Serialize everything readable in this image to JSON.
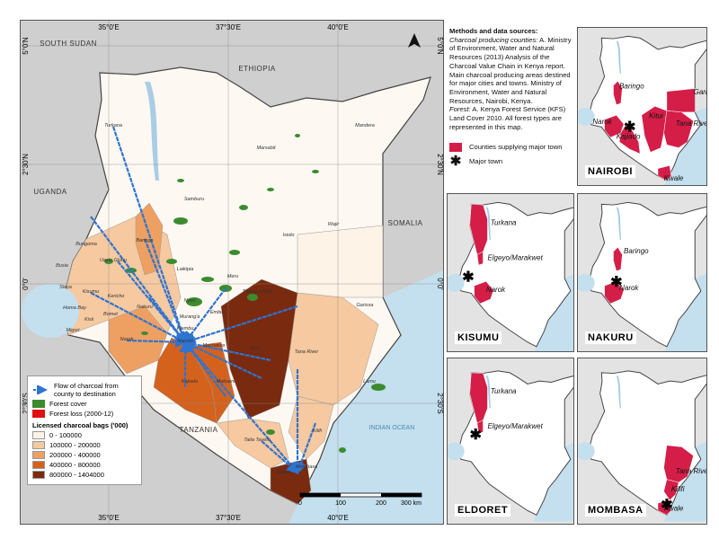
{
  "map": {
    "graticule": {
      "top": [
        "35°0'E",
        "37°30'E",
        "40°0'E"
      ],
      "bottom": [
        "35°0'E",
        "37°30'E",
        "40°0'E"
      ],
      "left": [
        "5°0'N",
        "2°30'N",
        "0°0'",
        "2°30'S"
      ],
      "right": [
        "5°0'N",
        "2°30'N",
        "0°0'",
        "2°30'S"
      ]
    },
    "countries": [
      "SOUTH SUDAN",
      "ETHIOPIA",
      "UGANDA",
      "SOMALIA",
      "TANZANIA"
    ],
    "ocean": "INDIAN OCEAN",
    "counties": [
      "Turkana",
      "Marsabit",
      "Mandera",
      "Wajir",
      "Samburu",
      "Isiolo",
      "Garissa",
      "Meru",
      "Laikipia",
      "Baringo",
      "Bungoma",
      "Uasin Gishu",
      "Busia",
      "Siaya",
      "Kisumu",
      "Kericho",
      "Homa Bay",
      "Kisii",
      "Migori",
      "Bomet",
      "Nakuru",
      "Narok",
      "Nyeri",
      "Tharaka Nithi",
      "Embu",
      "Murang'a",
      "Kiambu",
      "Nairobi",
      "Machakos",
      "Kitui",
      "Kajiado",
      "Makueni",
      "Tana River",
      "Lamu",
      "Kilifi",
      "Taita Taveta",
      "Kwale",
      "Mombasa"
    ],
    "scale_bar": [
      "0",
      "100",
      "200",
      "300 km"
    ]
  },
  "legend": {
    "flow": "Flow of charcoal from county to destination",
    "forest_cover": "Forest cover",
    "forest_loss": "Forest loss (2000-12)",
    "bags_title": "Licensed charcoal bags ('000)",
    "classes": [
      "0 - 100000",
      "100000 - 200000",
      "200000 - 400000",
      "400000 - 800000",
      "800000 - 1404000"
    ]
  },
  "methods": {
    "title": "Methods and data sources:",
    "counties_label": "Charcoal producing counties:",
    "counties_text": "A. Ministry of Environment, Water and Natural Resources (2013) Analysis of the Charcoal Value Chain in Kenya report. Main charcoal producing areas destined for major cities and towns. Ministry of Environment, Water and Natural Resources, Nairobi, Kenya.",
    "forest_label": "Forest:",
    "forest_text": "A. Kenya Forest Service (KFS) Land Cover 2010. All forest types are represented in this map."
  },
  "inset_legend": {
    "counties": "Counties supplying major town",
    "town": "Major town"
  },
  "insets": [
    {
      "title": "NAIROBI",
      "labels": [
        "Baringo",
        "Garissa",
        "Narok",
        "Kitui",
        "Tana River",
        "Kajiado",
        "Kwale"
      ]
    },
    {
      "title": "KISUMU",
      "labels": [
        "Turkana",
        "Elgeyo/Marakwet",
        "Narok"
      ]
    },
    {
      "title": "NAKURU",
      "labels": [
        "Baringo",
        "Narok"
      ]
    },
    {
      "title": "ELDORET",
      "labels": [
        "Turkana",
        "Elgeyo/Marakwet"
      ]
    },
    {
      "title": "MOMBASA",
      "labels": [
        "Tana River",
        "Kilifi",
        "Kwale"
      ]
    }
  ]
}
